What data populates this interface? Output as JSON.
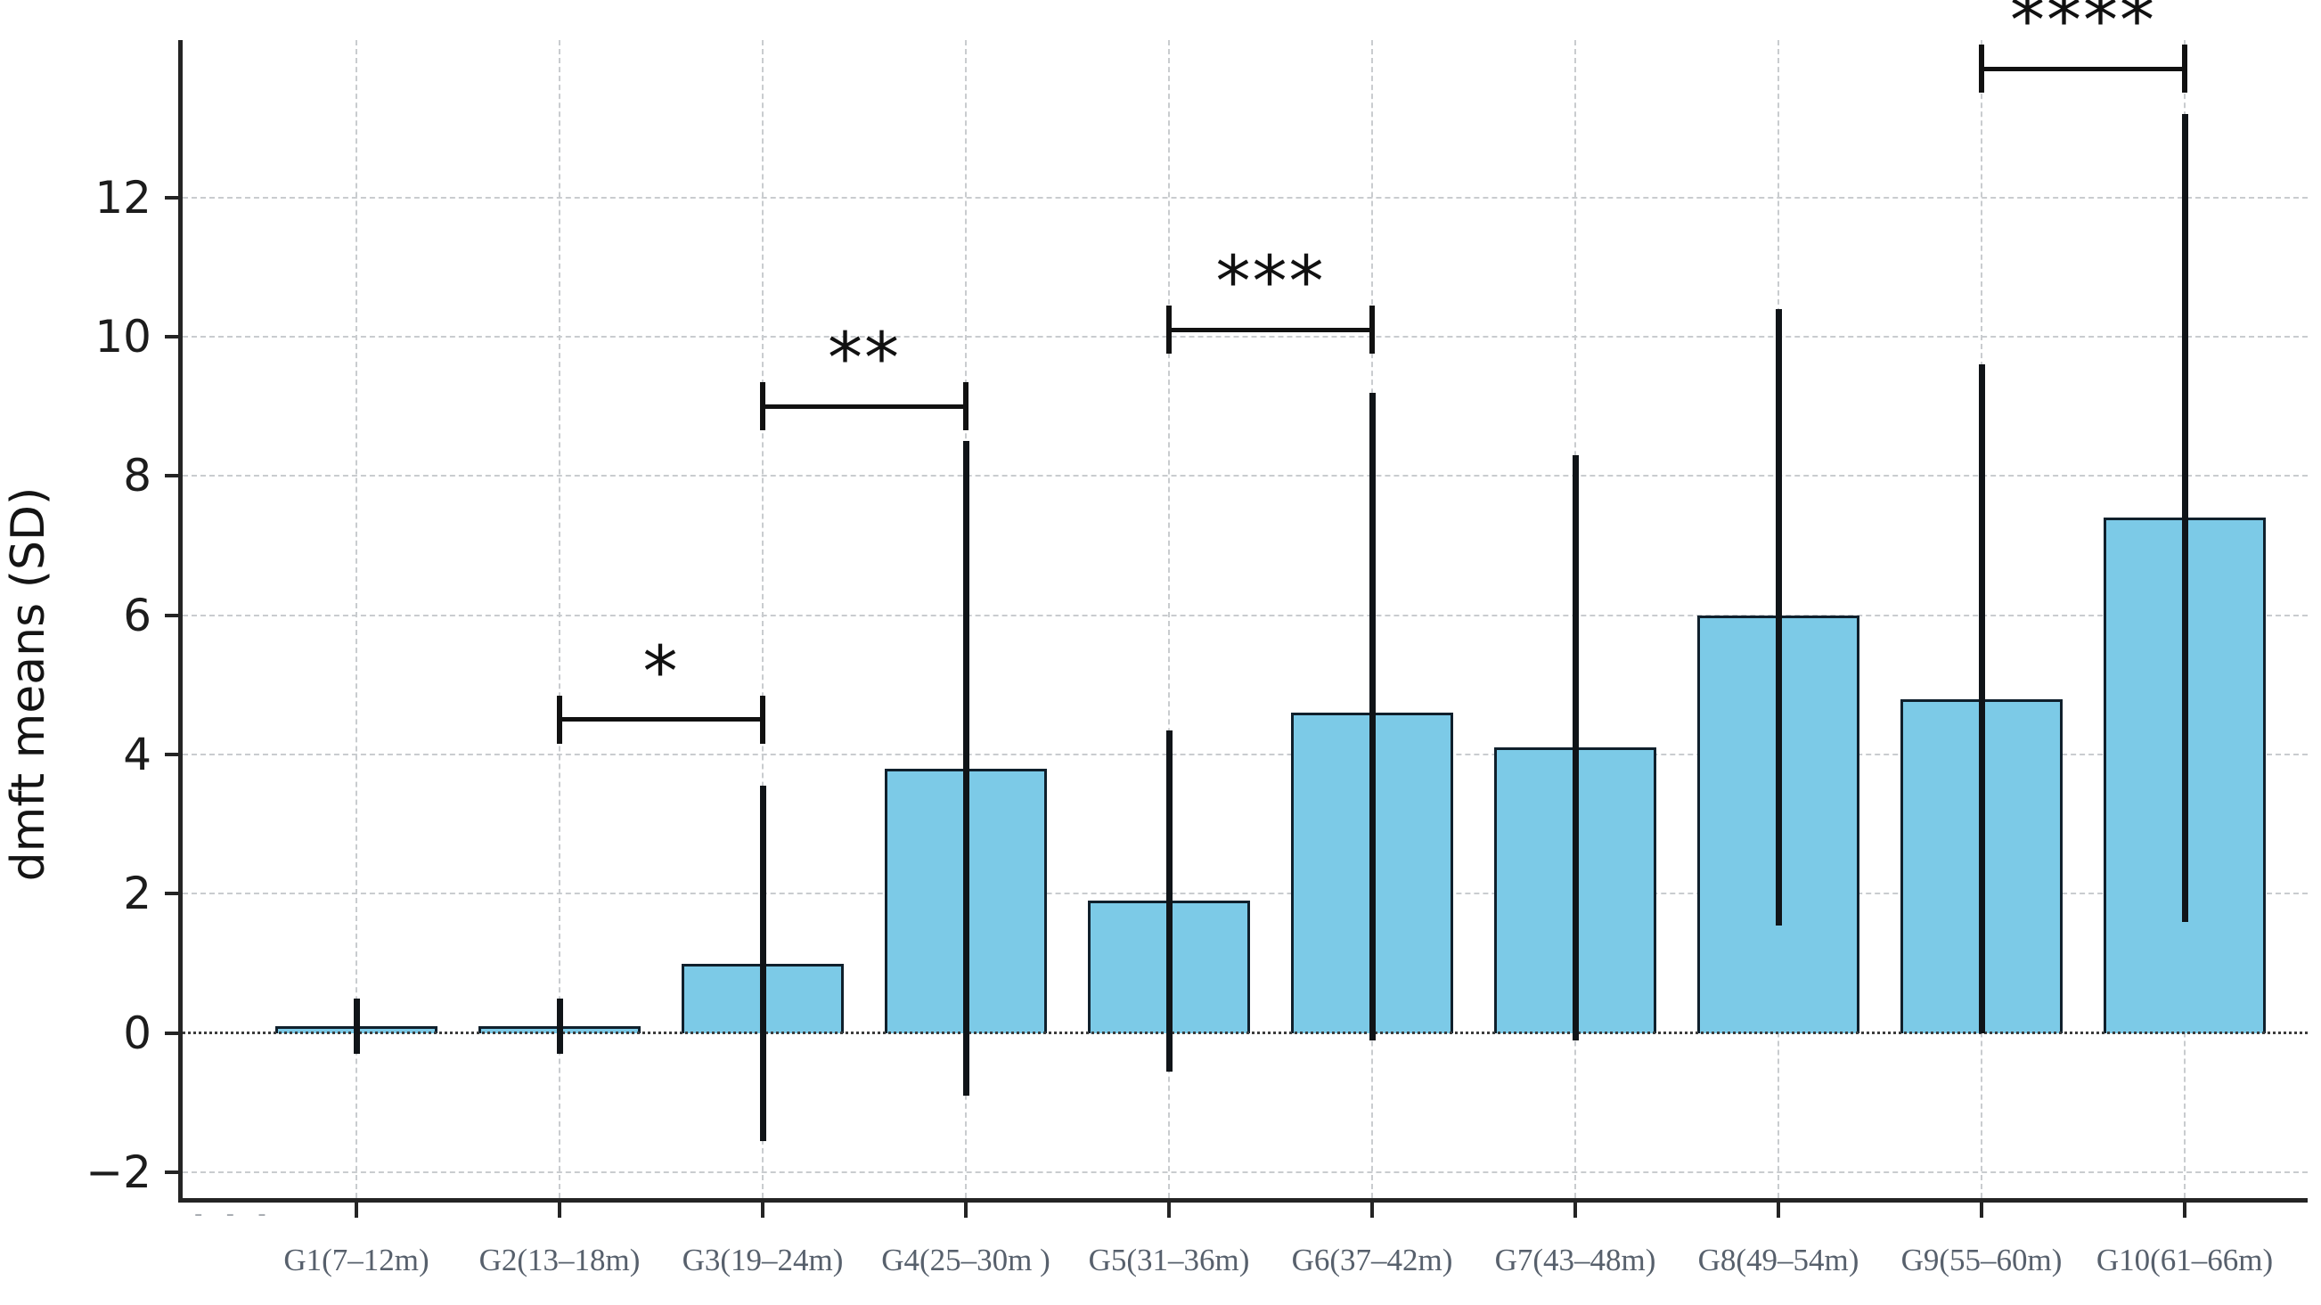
{
  "figure": {
    "title": "",
    "ylabel": "dmft means (SD)",
    "artifact_dots": "- - -",
    "colors": {
      "background": "#ffffff",
      "bar_fill": "#7ccae7",
      "bar_edge": "#10202c",
      "whisker": "#101418",
      "grid": "#c9cccf",
      "zero_line": "#3c3c3c",
      "axis": "#242424",
      "y_tick_text": "#1c1c1c",
      "x_tick_text": "#57606c",
      "bracket": "#111111"
    }
  },
  "chart_data": {
    "type": "bar",
    "title": "",
    "xlabel": "",
    "ylabel": "dmft means (SD)",
    "categories": [
      "G1(7–12m)",
      "G2(13–18m)",
      "G3(19–24m)",
      "G4(25–30m )",
      "G5(31–36m)",
      "G6(37–42m)",
      "G7(43–48m)",
      "G8(49–54m)",
      "G9(55–60m)",
      "G10(61–66m)"
    ],
    "series": [
      {
        "name": "dmft mean",
        "values": [
          0.1,
          0.1,
          1.0,
          3.8,
          1.9,
          4.6,
          4.1,
          6.0,
          4.8,
          7.4
        ]
      }
    ],
    "error_bars": {
      "upper_ends": [
        0.5,
        0.5,
        3.55,
        8.5,
        4.35,
        9.2,
        8.3,
        10.4,
        9.6,
        13.2
      ],
      "lower_ends": [
        -0.3,
        -0.3,
        -1.55,
        -0.9,
        -0.55,
        -0.1,
        -0.1,
        1.55,
        0.0,
        1.6
      ]
    },
    "significance_brackets": [
      {
        "label": "*",
        "from_index": 1,
        "to_index": 2,
        "y": 4.5
      },
      {
        "label": "**",
        "from_index": 2,
        "to_index": 3,
        "y": 9.0
      },
      {
        "label": "***",
        "from_index": 4,
        "to_index": 5,
        "y": 10.1
      },
      {
        "label": "****",
        "from_index": 8,
        "to_index": 9,
        "y": 13.85
      }
    ],
    "y_ticks": [
      {
        "value": -2,
        "label": "−2"
      },
      {
        "value": 0,
        "label": "0"
      },
      {
        "value": 2,
        "label": "2"
      },
      {
        "value": 4,
        "label": "4"
      },
      {
        "value": 6,
        "label": "6"
      },
      {
        "value": 8,
        "label": "8"
      },
      {
        "value": 10,
        "label": "10"
      },
      {
        "value": 12,
        "label": "12"
      }
    ],
    "ylim": [
      -2.37,
      14.26
    ],
    "grid": true,
    "legend_position": "none"
  }
}
